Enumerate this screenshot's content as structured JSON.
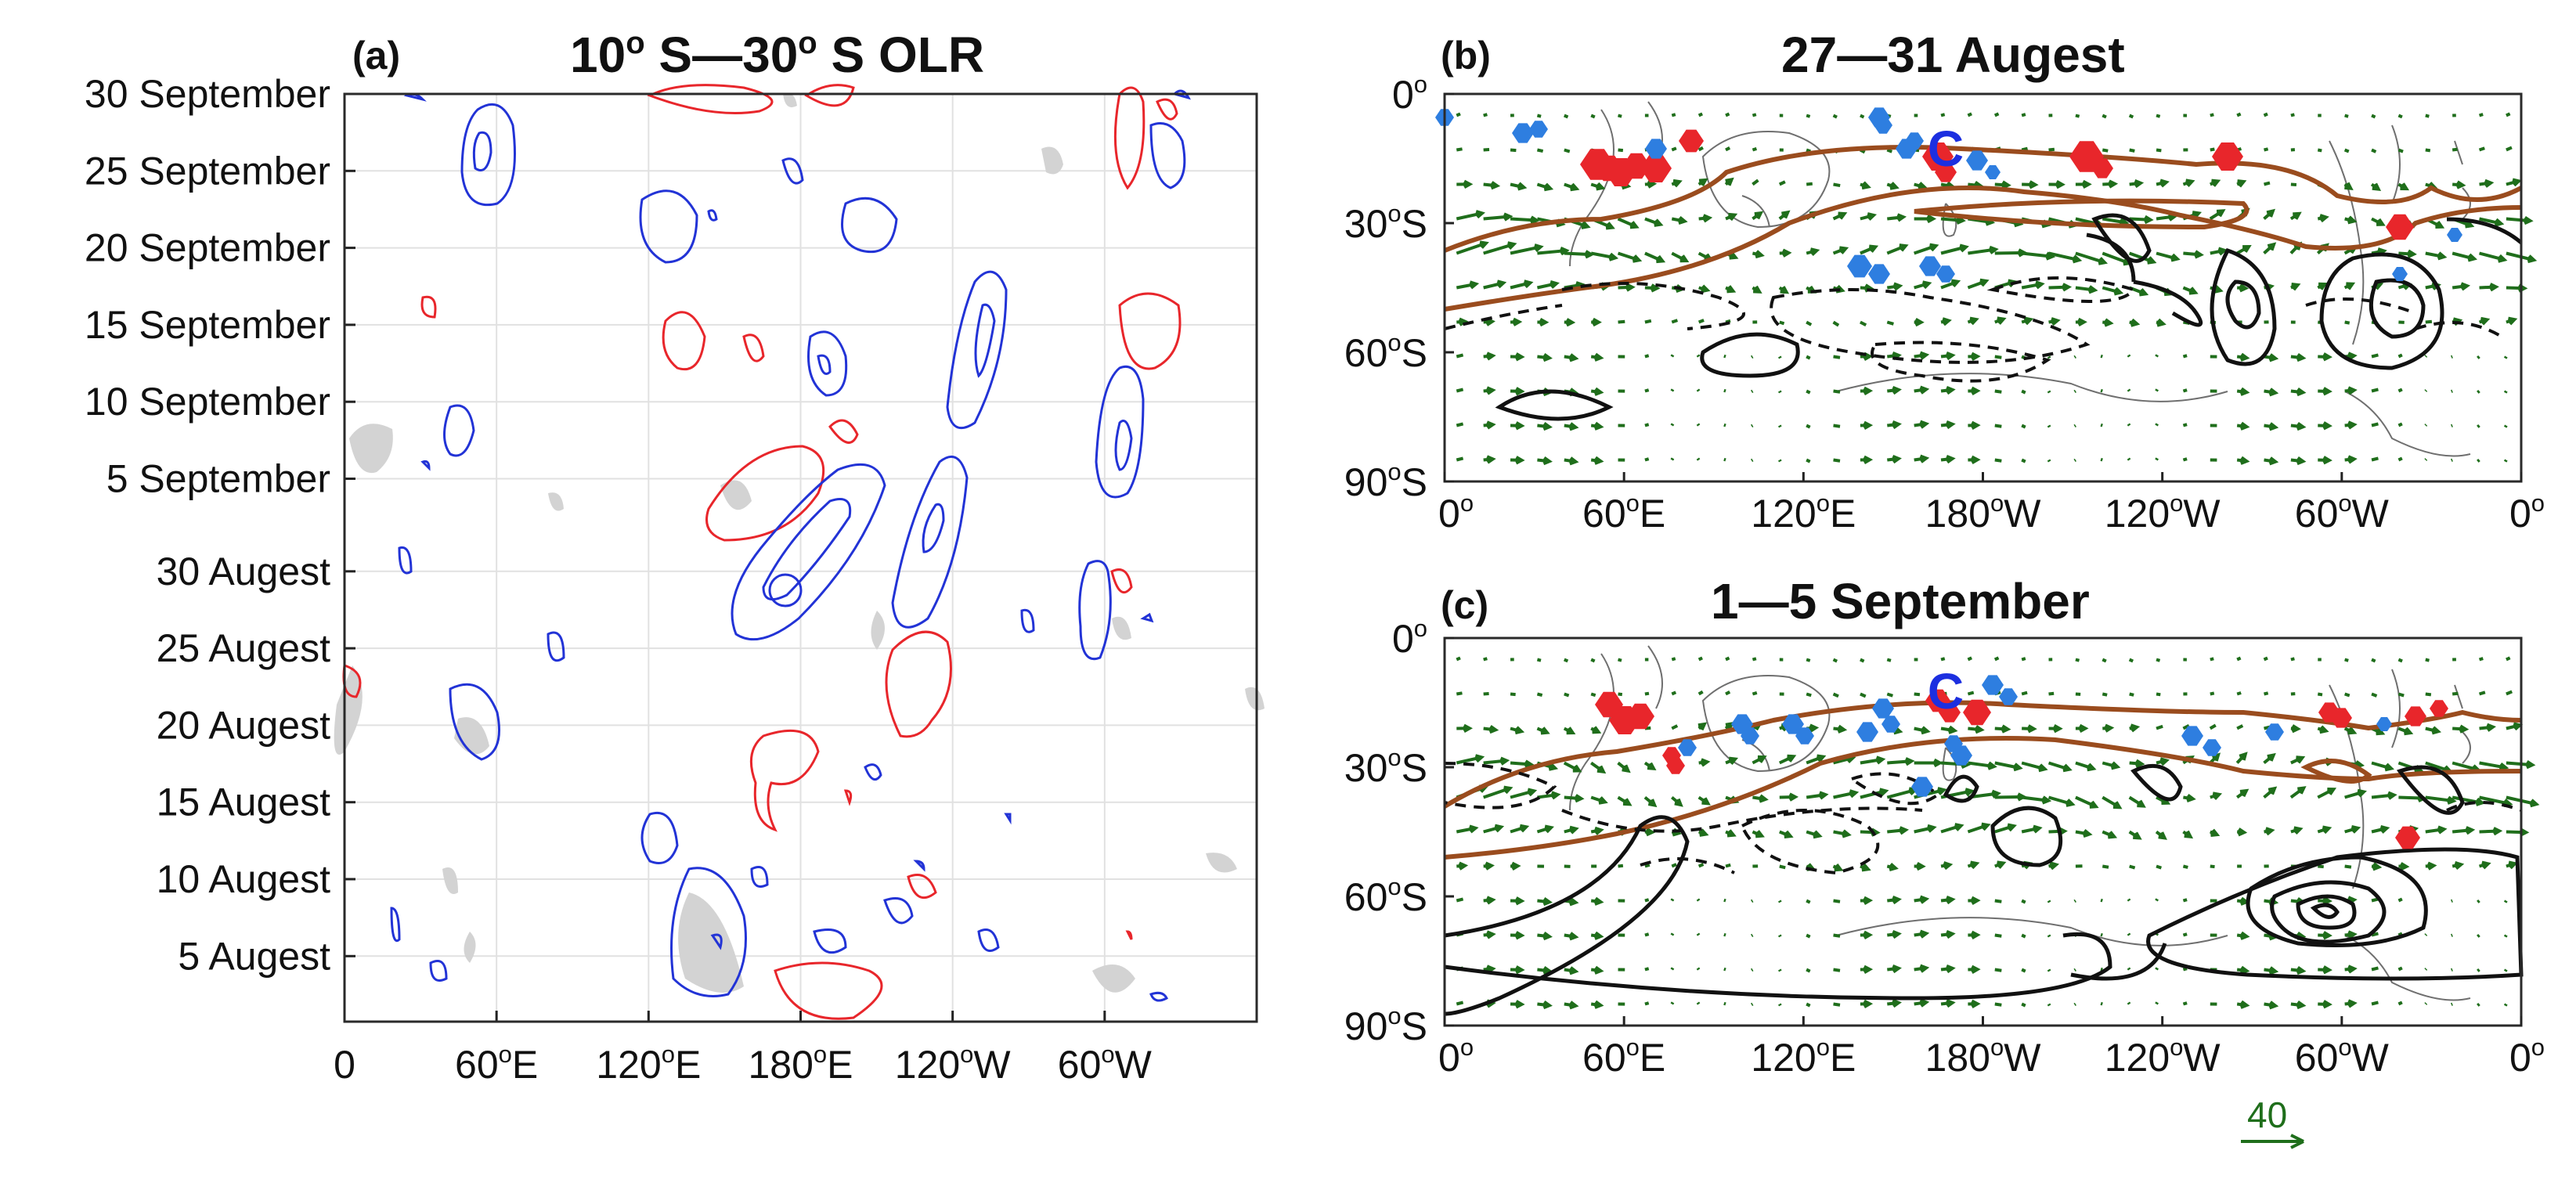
{
  "chart_data": [
    {
      "panel": "a",
      "type": "heatmap",
      "letter": "(a)",
      "title_parts": [
        "10",
        "o",
        " S—30",
        "o",
        " S OLR"
      ],
      "y_ticks": [
        "30 September",
        "25 September",
        "20 September",
        "15 September",
        "10 September",
        "5 September",
        "30 Augest",
        "25 Augest",
        "20 Augest",
        "15 Augest",
        "10 Augest",
        "5 Augest"
      ],
      "x_ticks": [
        {
          "text": "0",
          "sup": ""
        },
        {
          "text": "60",
          "sup": "o",
          "suffix": "E"
        },
        {
          "text": "120",
          "sup": "o",
          "suffix": "E"
        },
        {
          "text": "180",
          "sup": "o",
          "suffix": "E"
        },
        {
          "text": "120",
          "sup": "o",
          "suffix": "W"
        },
        {
          "text": "60",
          "sup": "o",
          "suffix": "W"
        }
      ],
      "xlim": [
        0,
        360
      ],
      "marker": "circle"
    },
    {
      "panel": "b",
      "type": "map",
      "letter": "(b)",
      "title": "27—31 Augest",
      "y_ticks": [
        {
          "text": "0",
          "sup": "o",
          "suffix": ""
        },
        {
          "text": "30",
          "sup": "o",
          "suffix": "S"
        },
        {
          "text": "60",
          "sup": "o",
          "suffix": "S"
        },
        {
          "text": "90",
          "sup": "o",
          "suffix": "S"
        }
      ],
      "x_ticks": [
        {
          "text": "0",
          "sup": "o",
          "suffix": ""
        },
        {
          "text": "60",
          "sup": "o",
          "suffix": "E"
        },
        {
          "text": "120",
          "sup": "o",
          "suffix": "E"
        },
        {
          "text": "180",
          "sup": "o",
          "suffix": "W"
        },
        {
          "text": "120",
          "sup": "o",
          "suffix": "W"
        },
        {
          "text": "60",
          "sup": "o",
          "suffix": "W"
        },
        {
          "text": "0",
          "sup": "o",
          "suffix": ""
        }
      ],
      "xlim": [
        0,
        360
      ],
      "ylim": [
        -90,
        0
      ],
      "marker_label": "C"
    },
    {
      "panel": "c",
      "type": "map",
      "letter": "(c)",
      "title": "1—5 September",
      "y_ticks": [
        {
          "text": "0",
          "sup": "o",
          "suffix": ""
        },
        {
          "text": "30",
          "sup": "o",
          "suffix": "S"
        },
        {
          "text": "60",
          "sup": "o",
          "suffix": "S"
        },
        {
          "text": "90",
          "sup": "o",
          "suffix": "S"
        }
      ],
      "x_ticks": [
        {
          "text": "0",
          "sup": "o",
          "suffix": ""
        },
        {
          "text": "60",
          "sup": "o",
          "suffix": "E"
        },
        {
          "text": "120",
          "sup": "o",
          "suffix": "E"
        },
        {
          "text": "180",
          "sup": "o",
          "suffix": "W"
        },
        {
          "text": "120",
          "sup": "o",
          "suffix": "W"
        },
        {
          "text": "60",
          "sup": "o",
          "suffix": "W"
        },
        {
          "text": "0",
          "sup": "o",
          "suffix": ""
        }
      ],
      "xlim": [
        0,
        360
      ],
      "ylim": [
        -90,
        0
      ],
      "marker_label": "C"
    }
  ],
  "reference_vector": {
    "label": "40"
  },
  "colors": {
    "red_contour": "#e8262b",
    "blue_contour": "#2233d6",
    "shading": "#d3d3d3",
    "vector": "#1f6e1b",
    "jet_contour": "#9a4c1e",
    "red_patch": "#e8262b",
    "blue_patch": "#2e7ee0"
  }
}
